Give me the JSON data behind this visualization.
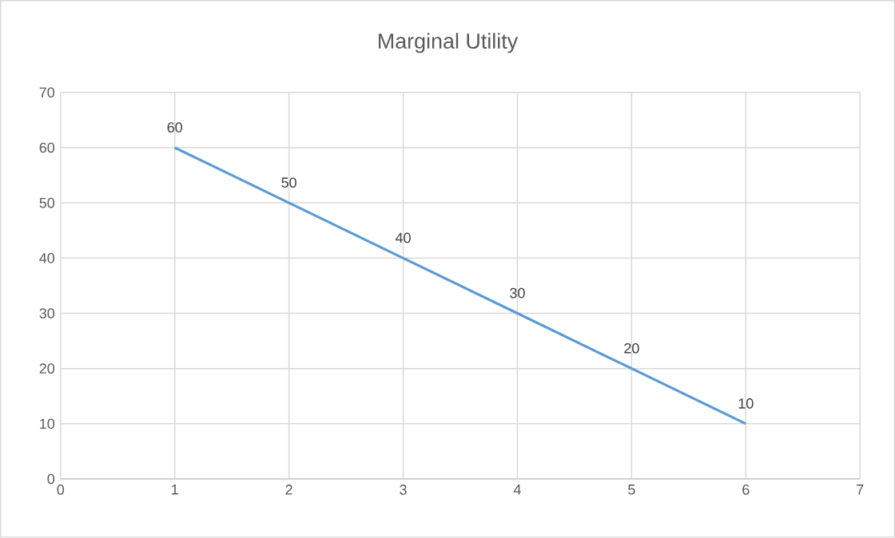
{
  "chart_data": {
    "type": "line",
    "title": "Marginal Utility",
    "x": [
      1,
      2,
      3,
      4,
      5,
      6
    ],
    "series": [
      {
        "color": "#5b9bd5",
        "values": [
          60,
          50,
          40,
          30,
          20,
          10
        ]
      }
    ],
    "xlim": [
      0,
      7
    ],
    "xticks": [
      0,
      1,
      2,
      3,
      4,
      5,
      6,
      7
    ],
    "ylim": [
      0,
      70
    ],
    "yticks": [
      0,
      10,
      20,
      30,
      40,
      50,
      60,
      70
    ],
    "grid": true,
    "data_labels": true,
    "marker": "none",
    "line_style": "solid"
  }
}
